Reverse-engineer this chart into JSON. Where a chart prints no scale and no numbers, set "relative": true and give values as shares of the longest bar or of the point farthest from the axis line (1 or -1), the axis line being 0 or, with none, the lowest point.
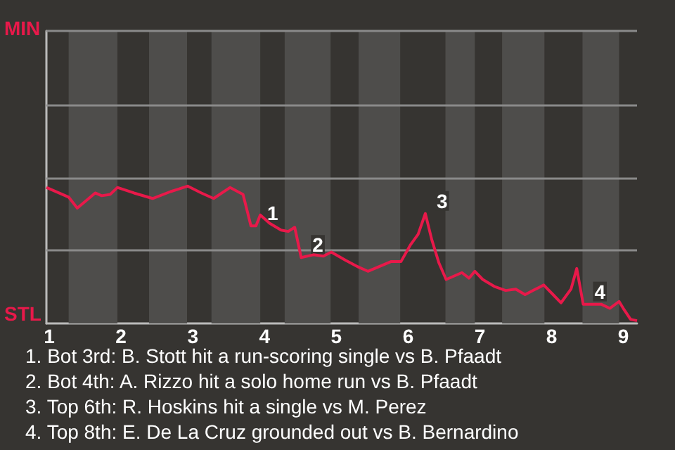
{
  "chart_data": {
    "type": "line",
    "relative": true,
    "x": [
      0.96,
      1.27,
      1.39,
      1.64,
      1.73,
      1.85,
      1.95,
      2.18,
      2.44,
      2.69,
      2.93,
      3.12,
      3.29,
      3.52,
      3.7,
      3.81,
      3.88,
      3.94,
      4.07,
      4.23,
      4.33,
      4.42,
      4.51,
      4.68,
      4.82,
      4.93,
      5.13,
      5.31,
      5.44,
      5.76,
      5.9,
      6.03,
      6.14,
      6.24,
      6.33,
      6.43,
      6.53,
      6.75,
      6.85,
      6.93,
      7.04,
      7.2,
      7.36,
      7.5,
      7.63,
      7.89,
      8.02,
      8.13,
      8.27,
      8.35,
      8.44,
      8.55,
      8.69,
      8.81,
      8.94,
      9.01,
      9.1,
      9.19
    ],
    "series": [
      {
        "color": "#e8194a",
        "values": [
          0.99,
          0.92,
          0.84,
          0.95,
          0.93,
          0.94,
          0.99,
          0.95,
          0.91,
          0.96,
          1,
          0.95,
          0.91,
          0.99,
          0.94,
          0.71,
          0.71,
          0.79,
          0.73,
          0.68,
          0.67,
          0.7,
          0.48,
          0.5,
          0.49,
          0.52,
          0.46,
          0.41,
          0.38,
          0.45,
          0.45,
          0.57,
          0.65,
          0.8,
          0.61,
          0.44,
          0.32,
          0.37,
          0.33,
          0.38,
          0.32,
          0.27,
          0.24,
          0.25,
          0.21,
          0.28,
          0.21,
          0.15,
          0.25,
          0.4,
          0.14,
          0.14,
          0.14,
          0.11,
          0.16,
          0.1,
          0.03,
          0.02
        ]
      }
    ],
    "xlim": [
      0.96,
      9.19
    ],
    "xticks": [
      1,
      2,
      3,
      4,
      5,
      6,
      7,
      8,
      9
    ],
    "ref_lines": [
      {
        "axis": "y",
        "value": 0.53,
        "color": "#8a8a8a"
      },
      {
        "axis": "y",
        "value": 1.06,
        "color": "#8a8a8a"
      },
      {
        "axis": "y",
        "value": 1.59,
        "color": "#8a8a8a"
      },
      {
        "axis": "y",
        "value": 2.13,
        "color": "#8a8a8a"
      }
    ],
    "marker": "none",
    "bands": [
      {
        "axis": "x",
        "from": 1.27,
        "to": 1.95,
        "color": "#4e4d4b"
      },
      {
        "axis": "x",
        "from": 2.39,
        "to": 2.92,
        "color": "#4e4d4b"
      },
      {
        "axis": "x",
        "from": 3.26,
        "to": 3.94,
        "color": "#4e4d4b"
      },
      {
        "axis": "x",
        "from": 4.28,
        "to": 4.92,
        "color": "#4e4d4b"
      },
      {
        "axis": "x",
        "from": 5.31,
        "to": 5.89,
        "color": "#4e4d4b"
      },
      {
        "axis": "x",
        "from": 6.52,
        "to": 6.93,
        "color": "#4e4d4b"
      },
      {
        "axis": "x",
        "from": 7.31,
        "to": 7.9,
        "color": "#4e4d4b"
      },
      {
        "axis": "x",
        "from": 8.43,
        "to": 8.94,
        "color": "#4e4d4b"
      }
    ],
    "annotations": [
      {
        "text": "1",
        "x": 3.88,
        "y": 0.71
      },
      {
        "text": "2",
        "x": 4.51,
        "y": 0.48
      },
      {
        "text": "3",
        "x": 6.24,
        "y": 0.8
      },
      {
        "text": "4",
        "x": 8.44,
        "y": 0.14
      },
      "MIN",
      "STL",
      "1. Bot 3rd: B. Stott hit a run-scoring single vs B. Pfaadt",
      "2. Bot 4th: A. Rizzo hit a solo home run vs B. Pfaadt",
      "3. Top 6th: R. Hoskins hit a single vs M. Perez",
      "4. Top 8th: E. De La Cruz grounded out vs B. Bernardino"
    ]
  }
}
